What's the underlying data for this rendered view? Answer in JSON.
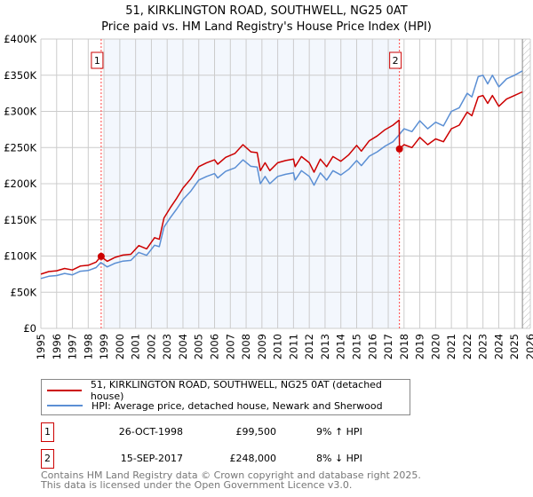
{
  "chart_data": {
    "type": "line",
    "title": "51, KIRKLINGTON ROAD, SOUTHWELL, NG25 0AT",
    "subtitle": "Price paid vs. HM Land Registry's House Price Index (HPI)",
    "xlim": [
      1995,
      2026
    ],
    "ylim": [
      0,
      400000
    ],
    "yticks": [
      0,
      50000,
      100000,
      150000,
      200000,
      250000,
      300000,
      350000,
      400000
    ],
    "ytick_labels": [
      "£0",
      "£50K",
      "£100K",
      "£150K",
      "£200K",
      "£250K",
      "£300K",
      "£350K",
      "£400K"
    ],
    "xtick_labels": [
      "1995",
      "1996",
      "1997",
      "1998",
      "1999",
      "2000",
      "2001",
      "2002",
      "2003",
      "2004",
      "2005",
      "2006",
      "2007",
      "2008",
      "2009",
      "2010",
      "2011",
      "2012",
      "2013",
      "2014",
      "2015",
      "2016",
      "2017",
      "2018",
      "2019",
      "2020",
      "2021",
      "2022",
      "2023",
      "2024",
      "2025",
      "2026"
    ],
    "grid": true,
    "legend_placement": "bottom",
    "series": [
      {
        "name": "51, KIRKLINGTON ROAD, SOUTHWELL, NG25 0AT (detached house)",
        "color": "#cc0000",
        "x": [
          1995.0,
          1995.5,
          1996.0,
          1996.5,
          1997.0,
          1997.5,
          1998.0,
          1998.5,
          1998.8,
          1999.2,
          1999.7,
          2000.2,
          2000.7,
          2001.2,
          2001.7,
          2002.2,
          2002.5,
          2002.8,
          2003.2,
          2003.6,
          2004.0,
          2004.5,
          2005.0,
          2005.5,
          2006.0,
          2006.2,
          2006.7,
          2007.3,
          2007.8,
          2008.3,
          2008.7,
          2008.9,
          2009.2,
          2009.5,
          2010.0,
          2010.5,
          2011.0,
          2011.1,
          2011.5,
          2012.0,
          2012.3,
          2012.7,
          2013.1,
          2013.5,
          2014.0,
          2014.5,
          2015.0,
          2015.3,
          2015.8,
          2016.3,
          2016.8,
          2017.3,
          2017.69,
          2017.71,
          2018.0,
          2018.5,
          2019.0,
          2019.5,
          2020.0,
          2020.5,
          2021.0,
          2021.5,
          2022.0,
          2022.3,
          2022.7,
          2023.0,
          2023.3,
          2023.6,
          2024.0,
          2024.5,
          2025.0,
          2025.5
        ],
        "y": [
          75000,
          78500,
          79600,
          82800,
          80700,
          86100,
          87200,
          91600,
          99500,
          92700,
          98100,
          101400,
          102500,
          114500,
          110000,
          125400,
          123200,
          152600,
          166800,
          179900,
          194000,
          207000,
          223500,
          229000,
          233000,
          227000,
          236500,
          242000,
          254000,
          244000,
          243000,
          218000,
          229000,
          218000,
          229000,
          232000,
          234000,
          223500,
          237600,
          229000,
          216000,
          234000,
          223500,
          237600,
          231000,
          240000,
          253000,
          245000,
          259400,
          266000,
          274700,
          281000,
          288000,
          248000,
          254000,
          250000,
          264000,
          254000,
          262000,
          258000,
          276000,
          281000,
          299000,
          294000,
          320000,
          322000,
          311000,
          322000,
          307000,
          317000,
          322000,
          327000
        ]
      },
      {
        "name": "HPI: Average price, detached house, Newark and Sherwood",
        "color": "#5b8fd4",
        "x": [
          1995.0,
          1995.5,
          1996.0,
          1996.5,
          1997.0,
          1997.5,
          1998.0,
          1998.5,
          1998.8,
          1999.2,
          1999.7,
          2000.2,
          2000.7,
          2001.2,
          2001.7,
          2002.2,
          2002.5,
          2002.8,
          2003.2,
          2003.6,
          2004.0,
          2004.5,
          2005.0,
          2005.5,
          2006.0,
          2006.2,
          2006.7,
          2007.3,
          2007.8,
          2008.3,
          2008.7,
          2008.9,
          2009.2,
          2009.5,
          2010.0,
          2010.5,
          2011.0,
          2011.1,
          2011.5,
          2012.0,
          2012.3,
          2012.7,
          2013.1,
          2013.5,
          2014.0,
          2014.5,
          2015.0,
          2015.3,
          2015.8,
          2016.3,
          2016.8,
          2017.3,
          2017.7,
          2018.0,
          2018.5,
          2019.0,
          2019.5,
          2020.0,
          2020.5,
          2021.0,
          2021.5,
          2022.0,
          2022.3,
          2022.7,
          2023.0,
          2023.3,
          2023.6,
          2024.0,
          2024.5,
          2025.0,
          2025.5
        ],
        "y": [
          69000,
          72000,
          73000,
          76000,
          74000,
          79000,
          80000,
          84000,
          91000,
          85000,
          90000,
          93000,
          94000,
          105000,
          101000,
          115000,
          113000,
          140000,
          153000,
          165000,
          178000,
          190000,
          205000,
          210000,
          214000,
          208000,
          217000,
          222000,
          233000,
          224000,
          223000,
          200000,
          210000,
          200000,
          210000,
          213000,
          215000,
          205000,
          218000,
          210000,
          198000,
          215000,
          205000,
          218000,
          212000,
          220000,
          232000,
          225000,
          238000,
          244000,
          252000,
          258000,
          268000,
          276000,
          272000,
          287000,
          276000,
          285000,
          280000,
          300000,
          305000,
          325000,
          320000,
          348000,
          350000,
          338000,
          350000,
          334000,
          345000,
          350000,
          356000
        ]
      }
    ],
    "sales": [
      {
        "label": "1",
        "x": 1998.82,
        "y": 99500,
        "date": "26-OCT-1998",
        "price": "£99,500",
        "hpi": "9% ↑ HPI"
      },
      {
        "label": "2",
        "x": 2017.71,
        "y": 248000,
        "date": "15-SEP-2017",
        "price": "£248,000",
        "hpi": "8% ↓ HPI"
      }
    ],
    "forecast_start": 2025.5
  },
  "footer": {
    "line1": "Contains HM Land Registry data © Crown copyright and database right 2025.",
    "line2": "This data is licensed under the Open Government Licence v3.0."
  }
}
